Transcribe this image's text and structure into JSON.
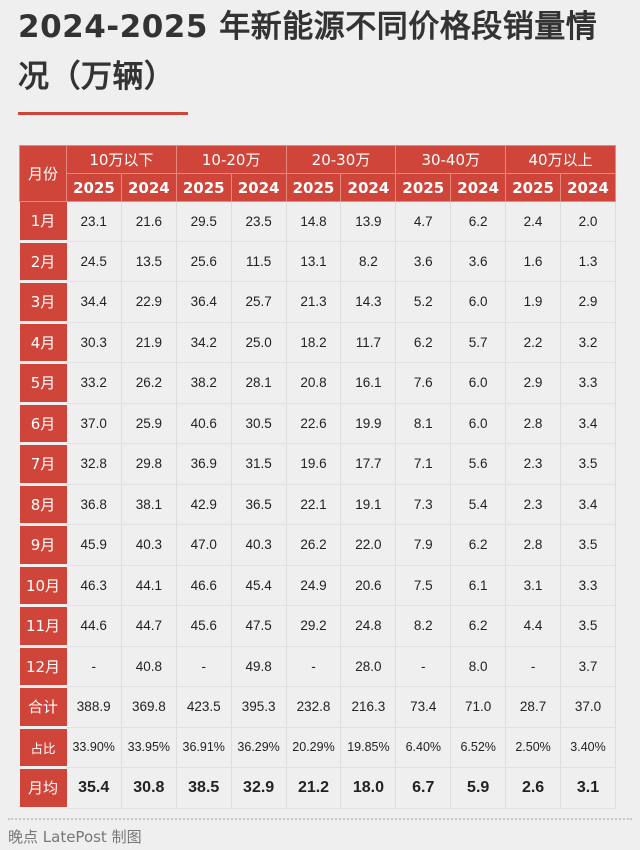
{
  "title": "2024-2025 年新能源不同价格段销量情况（万辆）",
  "table": {
    "corner": "月份",
    "groups": [
      "10万以下",
      "10-20万",
      "20-30万",
      "30-40万",
      "40万以上"
    ],
    "years": [
      "2025",
      "2024"
    ],
    "rows": [
      {
        "label": "1月",
        "values": [
          "23.1",
          "21.6",
          "29.5",
          "23.5",
          "14.8",
          "13.9",
          "4.7",
          "6.2",
          "2.4",
          "2.0"
        ]
      },
      {
        "label": "2月",
        "values": [
          "24.5",
          "13.5",
          "25.6",
          "11.5",
          "13.1",
          "8.2",
          "3.6",
          "3.6",
          "1.6",
          "1.3"
        ]
      },
      {
        "label": "3月",
        "values": [
          "34.4",
          "22.9",
          "36.4",
          "25.7",
          "21.3",
          "14.3",
          "5.2",
          "6.0",
          "1.9",
          "2.9"
        ]
      },
      {
        "label": "4月",
        "values": [
          "30.3",
          "21.9",
          "34.2",
          "25.0",
          "18.2",
          "11.7",
          "6.2",
          "5.7",
          "2.2",
          "3.2"
        ]
      },
      {
        "label": "5月",
        "values": [
          "33.2",
          "26.2",
          "38.2",
          "28.1",
          "20.8",
          "16.1",
          "7.6",
          "6.0",
          "2.9",
          "3.3"
        ]
      },
      {
        "label": "6月",
        "values": [
          "37.0",
          "25.9",
          "40.6",
          "30.5",
          "22.6",
          "19.9",
          "8.1",
          "6.0",
          "2.8",
          "3.4"
        ]
      },
      {
        "label": "7月",
        "values": [
          "32.8",
          "29.8",
          "36.9",
          "31.5",
          "19.6",
          "17.7",
          "7.1",
          "5.6",
          "2.3",
          "3.5"
        ]
      },
      {
        "label": "8月",
        "values": [
          "36.8",
          "38.1",
          "42.9",
          "36.5",
          "22.1",
          "19.1",
          "7.3",
          "5.4",
          "2.3",
          "3.4"
        ]
      },
      {
        "label": "9月",
        "values": [
          "45.9",
          "40.3",
          "47.0",
          "40.3",
          "26.2",
          "22.0",
          "7.9",
          "6.2",
          "2.8",
          "3.5"
        ]
      },
      {
        "label": "10月",
        "values": [
          "46.3",
          "44.1",
          "46.6",
          "45.4",
          "24.9",
          "20.6",
          "7.5",
          "6.1",
          "3.1",
          "3.3"
        ]
      },
      {
        "label": "11月",
        "values": [
          "44.6",
          "44.7",
          "45.6",
          "47.5",
          "29.2",
          "24.8",
          "8.2",
          "6.2",
          "4.4",
          "3.5"
        ]
      },
      {
        "label": "12月",
        "values": [
          "-",
          "40.8",
          "-",
          "49.8",
          "-",
          "28.0",
          "-",
          "8.0",
          "-",
          "3.7"
        ]
      },
      {
        "label": "合计",
        "values": [
          "388.9",
          "369.8",
          "423.5",
          "395.3",
          "232.8",
          "216.3",
          "73.4",
          "71.0",
          "28.7",
          "37.0"
        ]
      },
      {
        "label": "占比",
        "values": [
          "33.90%",
          "33.95%",
          "36.91%",
          "36.29%",
          "20.29%",
          "19.85%",
          "6.40%",
          "6.52%",
          "2.50%",
          "3.40%"
        ]
      },
      {
        "label": "月均",
        "values": [
          "35.4",
          "30.8",
          "38.5",
          "32.9",
          "21.2",
          "18.0",
          "6.7",
          "5.9",
          "2.6",
          "3.1"
        ]
      }
    ]
  },
  "footer": "晚点 LatePost 制图",
  "colors": {
    "accent": "#d0453a",
    "background": "#efefef"
  }
}
